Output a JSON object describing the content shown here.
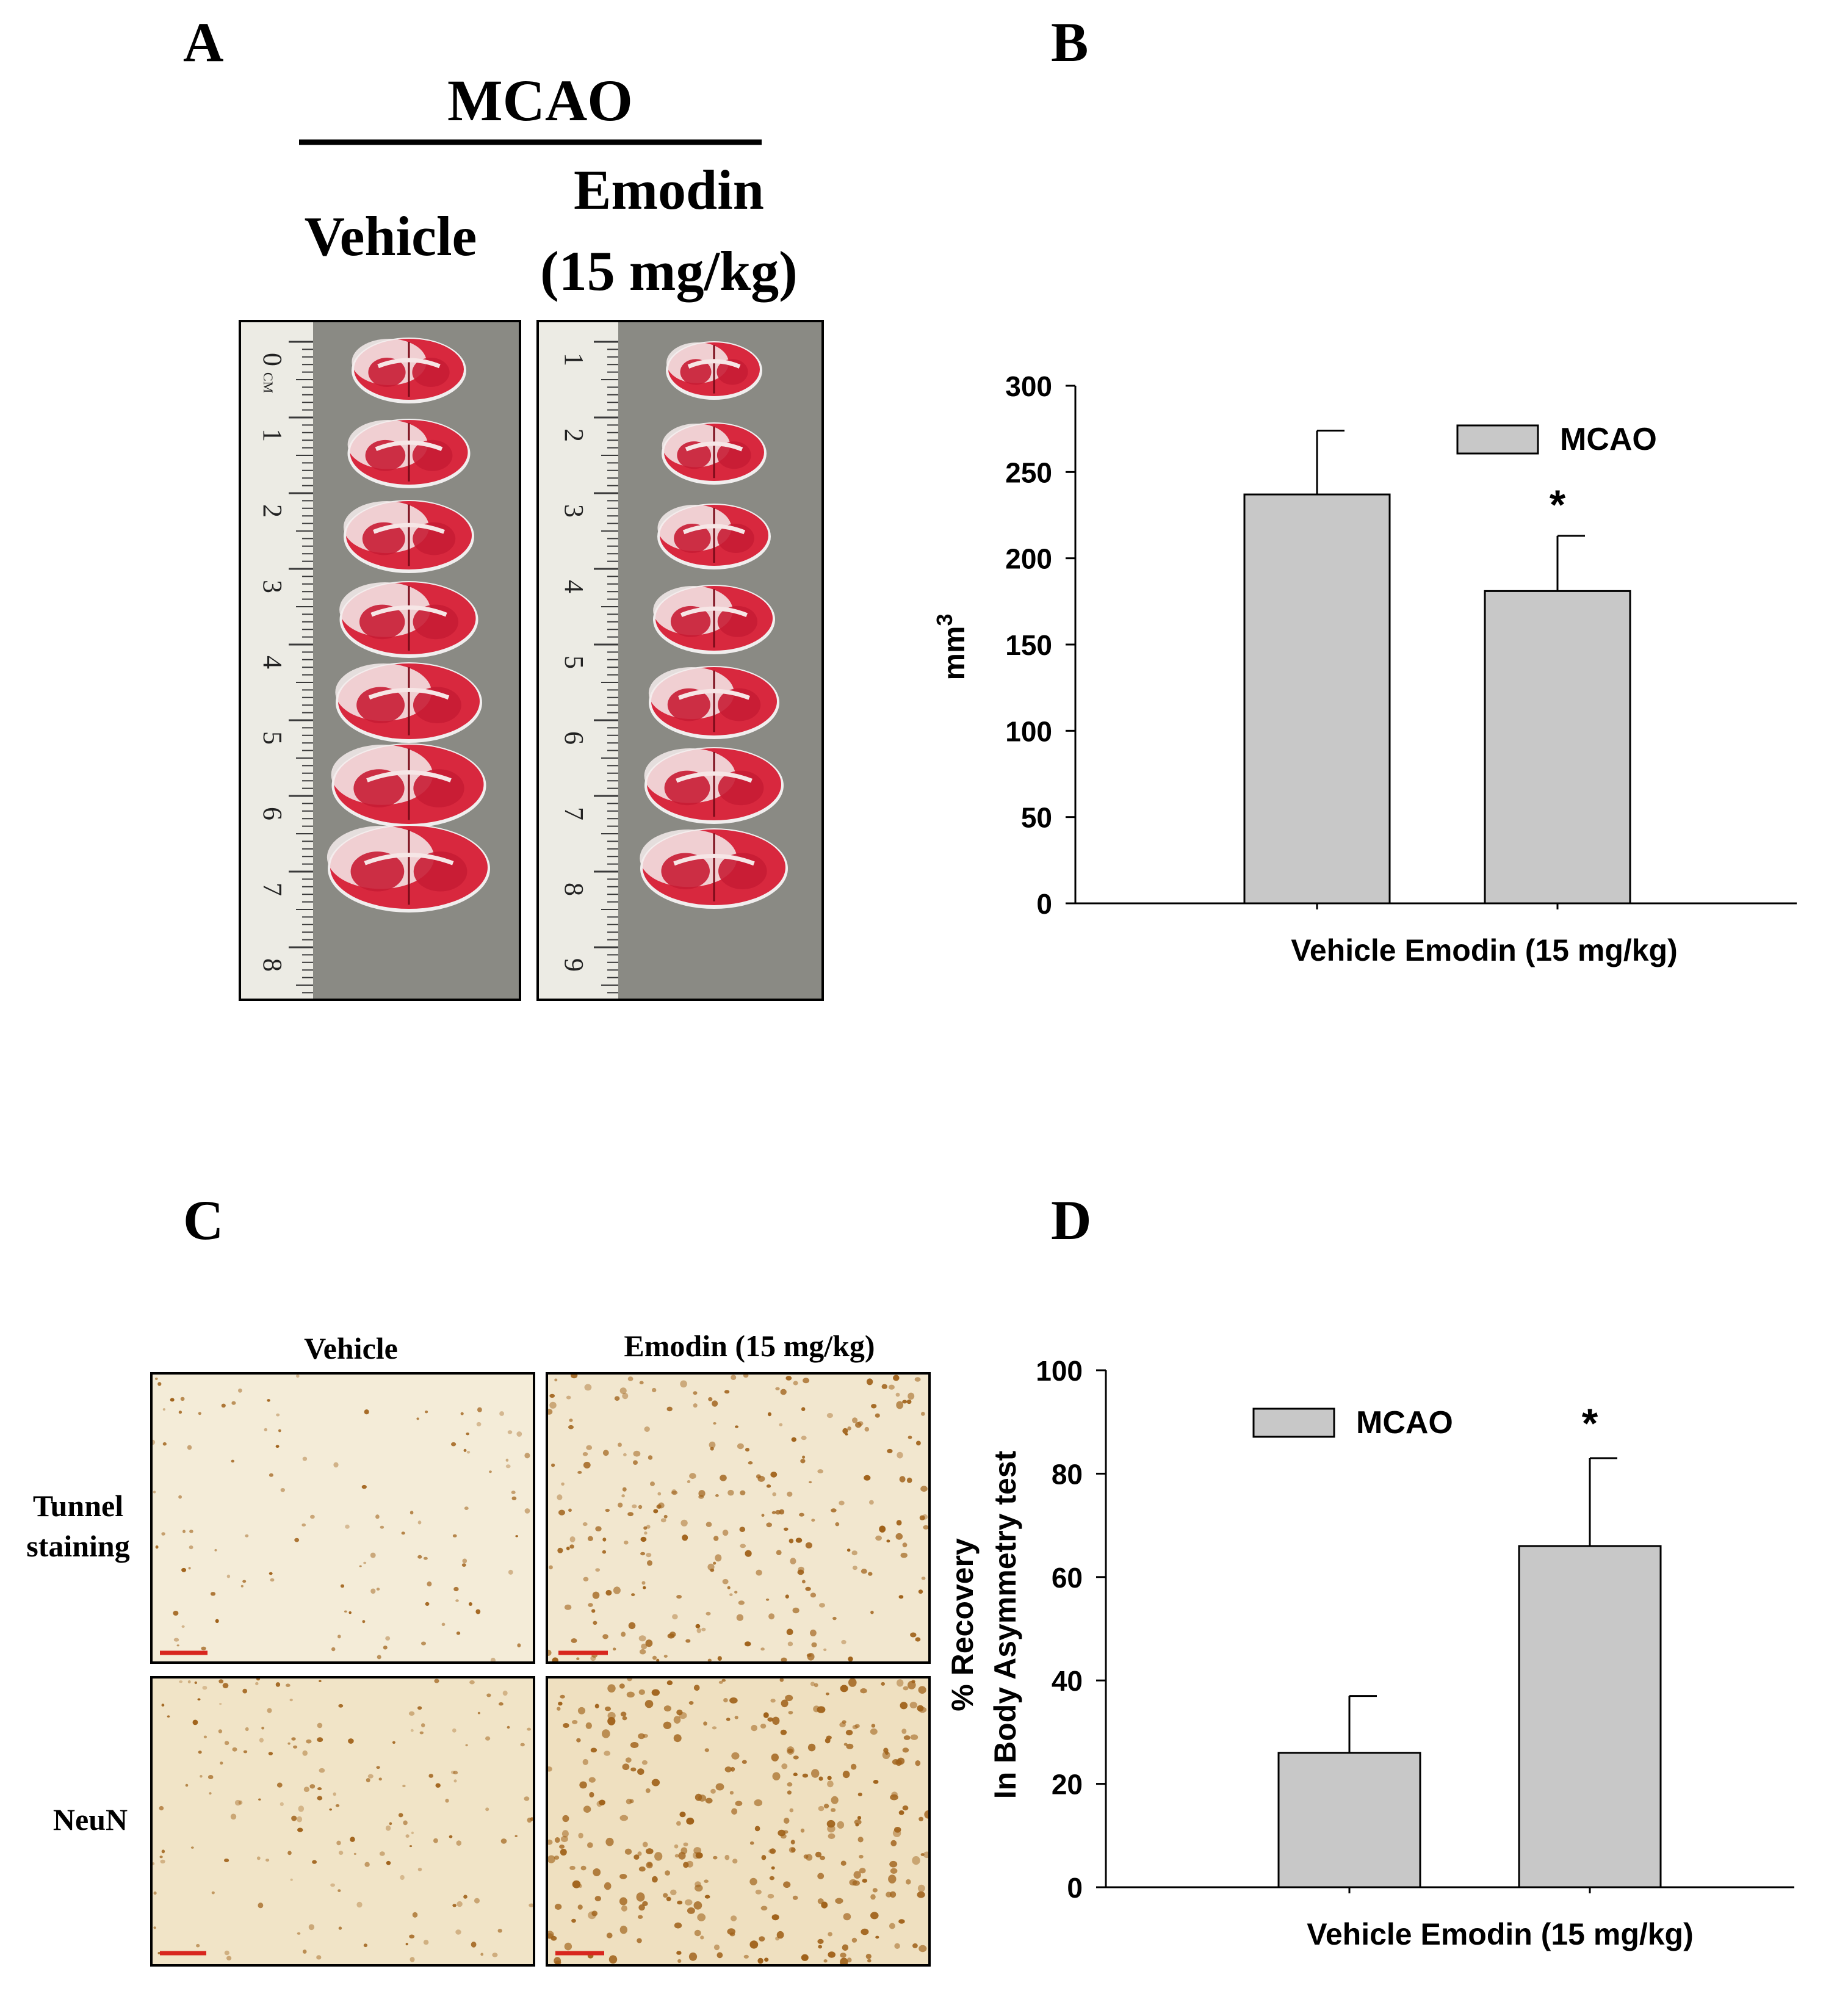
{
  "panels": {
    "a": {
      "letter": "A",
      "group_header": "MCAO",
      "col_vehicle": "Vehicle",
      "col_emodin_line1": "Emodin",
      "col_emodin_line2": "(15 mg/kg)",
      "ruler_left_digits": [
        "0",
        "1",
        "2",
        "3",
        "4",
        "5",
        "6",
        "7",
        "8"
      ],
      "ruler_left_unit": "CM",
      "ruler_right_digits": [
        "1",
        "2",
        "3",
        "4",
        "5",
        "6",
        "7",
        "8",
        "9"
      ],
      "slice_count": 7
    },
    "b": {
      "letter": "B",
      "chart_data": {
        "type": "bar",
        "categories": [
          "Vehicle",
          "Emodin (15 mg/kg)"
        ],
        "series": [
          {
            "name": "MCAO",
            "values": [
              237,
              181
            ],
            "errors": [
              37,
              32
            ]
          }
        ],
        "significance": [
          "",
          "*"
        ],
        "ylabel": "mm",
        "ylabel_superscript": "3",
        "xlabel": "",
        "ylim": [
          0,
          300
        ],
        "yticks": [
          0,
          50,
          100,
          150,
          200,
          250,
          300
        ],
        "x_tick_text": "Vehicle Emodin (15 mg/kg)",
        "legend": "top-right",
        "grid": false,
        "bar_color": "#c8c8c8"
      }
    },
    "c": {
      "letter": "C",
      "col_vehicle": "Vehicle",
      "col_emodin": "Emodin (15 mg/kg)",
      "row_tunnel_line1": "Tunnel",
      "row_tunnel_line2": "staining",
      "row_neun": "NeuN"
    },
    "d": {
      "letter": "D",
      "chart_data": {
        "type": "bar",
        "categories": [
          "Vehicle",
          "Emodin (15 mg/kg)"
        ],
        "series": [
          {
            "name": "MCAO",
            "values": [
              26,
              66
            ],
            "errors": [
              11,
              17
            ]
          }
        ],
        "significance": [
          "",
          "*"
        ],
        "ylabel_line1": "% Recovery",
        "ylabel_line2": "In Body Asymmetry test",
        "xlabel": "",
        "ylim": [
          0,
          100
        ],
        "yticks": [
          0,
          20,
          40,
          60,
          80,
          100
        ],
        "x_tick_text": "Vehicle Emodin (15 mg/kg)",
        "legend": "top-left",
        "grid": false,
        "bar_color": "#c8c8c8"
      }
    }
  },
  "colors": {
    "tissue_stain": "#d8283e",
    "infarct": "#f4ecec",
    "micrograph_bg": "#f3ebd6",
    "cell_stain": "#a0621a",
    "scale_bar": "#d8261e"
  }
}
